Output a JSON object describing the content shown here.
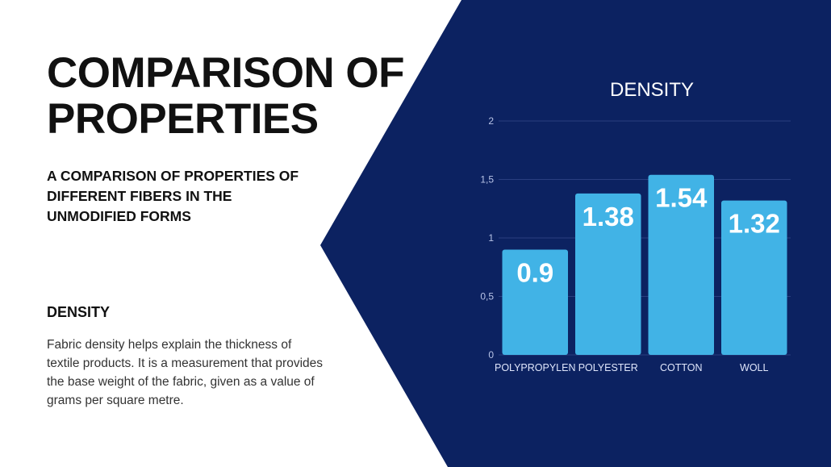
{
  "slide": {
    "title": "COMPARISON OF PROPERTIES",
    "subtitle": "A COMPARISON OF PROPERTIES OF DIFFERENT FIBERS IN THE UNMODIFIED FORMS",
    "section_heading": "DENSITY",
    "body": "Fabric density helps explain the thickness of textile products. It is a measurement that provides the base weight of the fabric, given as a value of grams per square metre.",
    "colors": {
      "panel": "#0c2261",
      "bar": "#41b3e6",
      "gridline": "#2a3f80"
    }
  },
  "chart_data": {
    "type": "bar",
    "title": "DENSITY",
    "categories": [
      "POLYPROPYLEN",
      "POLYESTER",
      "COTTON",
      "WOLL"
    ],
    "values": [
      0.9,
      1.38,
      1.54,
      1.32
    ],
    "value_labels": [
      "0.9",
      "1.38",
      "1.54",
      "1.32"
    ],
    "ylim": [
      0,
      2
    ],
    "yticks": [
      0,
      0.5,
      1,
      1.5,
      2
    ],
    "ytick_labels": [
      "0",
      "0,5",
      "1",
      "1,5",
      "2"
    ],
    "grid": true,
    "legend": "none"
  }
}
